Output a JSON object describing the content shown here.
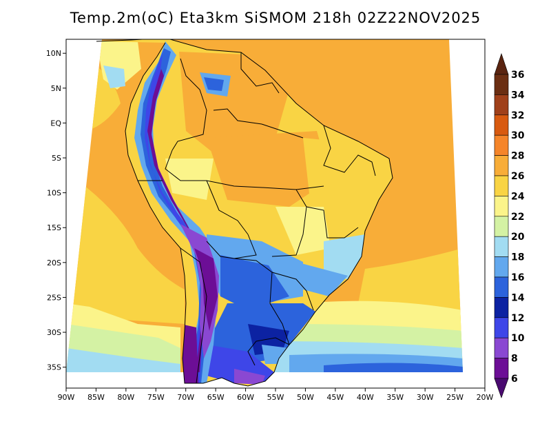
{
  "title": "Temp.2m(oC) Eta3km SiSMOM 218h 02Z22NOV2025",
  "map": {
    "lon_min": -90,
    "lon_max": -20,
    "lat_min": -38,
    "lat_max": 12,
    "lat_ticks": [
      {
        "value": 10,
        "label": "10N"
      },
      {
        "value": 5,
        "label": "5N"
      },
      {
        "value": 0,
        "label": "EQ"
      },
      {
        "value": -5,
        "label": "5S"
      },
      {
        "value": -10,
        "label": "10S"
      },
      {
        "value": -15,
        "label": "15S"
      },
      {
        "value": -20,
        "label": "20S"
      },
      {
        "value": -25,
        "label": "25S"
      },
      {
        "value": -30,
        "label": "30S"
      },
      {
        "value": -35,
        "label": "35S"
      }
    ],
    "lon_ticks": [
      {
        "value": -90,
        "label": "90W"
      },
      {
        "value": -85,
        "label": "85W"
      },
      {
        "value": -80,
        "label": "80W"
      },
      {
        "value": -75,
        "label": "75W"
      },
      {
        "value": -70,
        "label": "70W"
      },
      {
        "value": -65,
        "label": "65W"
      },
      {
        "value": -60,
        "label": "60W"
      },
      {
        "value": -55,
        "label": "55W"
      },
      {
        "value": -50,
        "label": "50W"
      },
      {
        "value": -45,
        "label": "45W"
      },
      {
        "value": -40,
        "label": "40W"
      },
      {
        "value": -35,
        "label": "35W"
      },
      {
        "value": -30,
        "label": "30W"
      },
      {
        "value": -25,
        "label": "25W"
      },
      {
        "value": -20,
        "label": "20W"
      }
    ]
  },
  "colorbar": {
    "labels": [
      "36",
      "34",
      "32",
      "30",
      "28",
      "26",
      "24",
      "22",
      "20",
      "18",
      "16",
      "14",
      "12",
      "10",
      "8",
      "6"
    ],
    "colors": [
      "#6b2e12",
      "#a0401a",
      "#d85a10",
      "#f5852a",
      "#f8ad38",
      "#f9d444",
      "#fbf48a",
      "#d4f2a4",
      "#a2dcf2",
      "#62a8ee",
      "#2c63dc",
      "#0c22a2",
      "#3e46e8",
      "#8a48d2",
      "#6c0e96"
    ],
    "top_arrow_color": "#5a2410",
    "bottom_arrow_color": "#4a0a70"
  }
}
